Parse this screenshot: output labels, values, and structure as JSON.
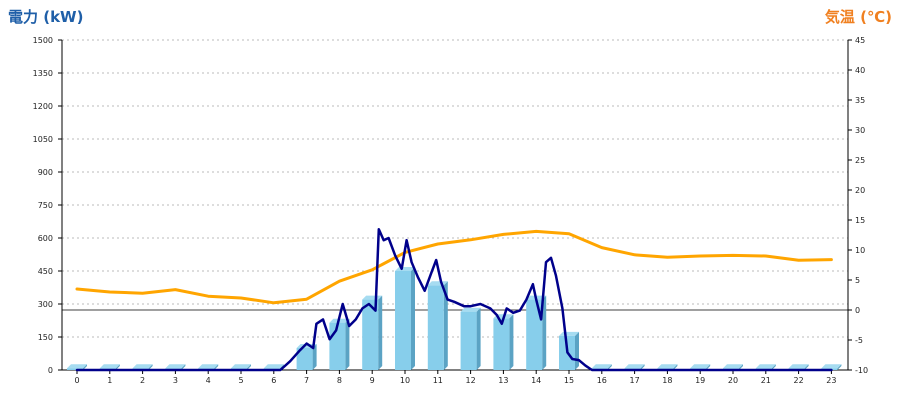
{
  "chart_data": {
    "type": "bar",
    "title": "",
    "left_axis_label": "電力 (kW)",
    "right_axis_label": "気温 (℃)",
    "xlabel": "",
    "categories": [
      "0",
      "1",
      "2",
      "3",
      "4",
      "5",
      "6",
      "7",
      "8",
      "9",
      "10",
      "11",
      "12",
      "13",
      "14",
      "15",
      "16",
      "17",
      "18",
      "19",
      "20",
      "21",
      "22",
      "23"
    ],
    "y_left": {
      "range": [
        0,
        1500
      ],
      "ticks": [
        "0",
        "150",
        "300",
        "450",
        "600",
        "750",
        "900",
        "1050",
        "1200",
        "1350",
        "1500"
      ]
    },
    "y_right": {
      "range": [
        -10,
        45
      ],
      "ticks": [
        "-10",
        "-5",
        "0",
        "5",
        "10",
        "15",
        "20",
        "25",
        "30",
        "35",
        "40",
        "45"
      ]
    },
    "grid": "horizontal dotted",
    "reference_line": {
      "axis": "right",
      "value": 0
    },
    "colors": {
      "left_title": "#1f5fa8",
      "right_title": "#f08020",
      "bar_face": "#87ceeb",
      "bar_side": "#5ba3c4",
      "bar_top": "#a6dcf1",
      "power_line": "#00008b",
      "temperature_line": "#ffa500",
      "grid": "#bbbbbb"
    },
    "series": [
      {
        "type": "bar",
        "axis": "left",
        "values": [
          8,
          8,
          8,
          8,
          8,
          8,
          8,
          100,
          215,
          320,
          450,
          385,
          265,
          235,
          320,
          155,
          8,
          8,
          8,
          8,
          8,
          8,
          8,
          8
        ]
      },
      {
        "type": "line",
        "axis": "left",
        "x": [
          0,
          6,
          6.2,
          6.5,
          6.8,
          7.0,
          7.2,
          7.3,
          7.5,
          7.7,
          7.9,
          8.1,
          8.3,
          8.5,
          8.7,
          8.9,
          9.1,
          9.2,
          9.35,
          9.5,
          9.7,
          9.9,
          10.05,
          10.2,
          10.4,
          10.6,
          10.8,
          10.95,
          11.1,
          11.3,
          11.5,
          11.8,
          12.0,
          12.3,
          12.6,
          12.8,
          12.95,
          13.1,
          13.3,
          13.5,
          13.7,
          13.9,
          14.0,
          14.15,
          14.3,
          14.45,
          14.6,
          14.8,
          14.95,
          15.1,
          15.3,
          15.5,
          15.7,
          23
        ],
        "values": [
          0,
          0,
          0,
          40,
          90,
          120,
          100,
          210,
          230,
          140,
          180,
          300,
          200,
          230,
          280,
          300,
          270,
          640,
          590,
          600,
          520,
          460,
          590,
          490,
          420,
          360,
          440,
          500,
          400,
          320,
          310,
          290,
          290,
          300,
          280,
          250,
          210,
          280,
          260,
          270,
          320,
          390,
          320,
          230,
          490,
          510,
          430,
          280,
          80,
          50,
          45,
          20,
          0,
          0
        ]
      },
      {
        "type": "line",
        "axis": "right",
        "x": [
          0,
          1,
          2,
          3,
          4,
          5,
          6,
          7,
          8,
          9,
          10,
          11,
          12,
          13,
          14,
          15,
          16,
          17,
          18,
          19,
          20,
          21,
          22,
          23
        ],
        "values": [
          3.5,
          3.0,
          2.8,
          3.4,
          2.3,
          2.0,
          1.2,
          1.8,
          4.8,
          6.7,
          9.6,
          11.0,
          11.7,
          12.6,
          13.1,
          12.7,
          10.4,
          9.2,
          8.8,
          9.0,
          9.1,
          9.0,
          8.3,
          8.4
        ]
      }
    ]
  }
}
